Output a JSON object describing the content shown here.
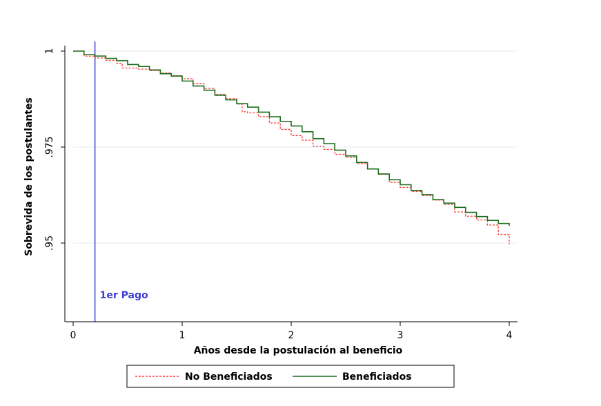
{
  "chart_data": {
    "type": "line",
    "ylabel": "Sobrevida de los postulantes",
    "xlabel": "Años desde la postulación al beneficio",
    "xlim": [
      0,
      4
    ],
    "ylim": [
      0.9295,
      1.0
    ],
    "x_ticks": [
      0,
      1,
      2,
      3,
      4
    ],
    "x_tick_labels": [
      "0",
      "1",
      "2",
      "3",
      "4"
    ],
    "y_ticks": [
      0.95,
      0.975,
      1.0
    ],
    "y_tick_labels": [
      ".95",
      ".975",
      "1"
    ],
    "grid": "horizontal",
    "legend_position": "bottom",
    "vline": {
      "x": 0.2,
      "label": "1er Pago",
      "color": "#3c3cd2"
    },
    "series": [
      {
        "name": "No Beneficiados",
        "color": "#ff3a3a",
        "style": "dashed",
        "x": [
          0,
          0.1,
          0.2,
          0.3,
          0.4,
          0.45,
          0.5,
          0.6,
          0.7,
          0.8,
          0.9,
          1.0,
          1.1,
          1.2,
          1.3,
          1.4,
          1.5,
          1.55,
          1.6,
          1.7,
          1.8,
          1.9,
          2.0,
          2.1,
          2.2,
          2.3,
          2.4,
          2.5,
          2.6,
          2.7,
          2.8,
          2.9,
          3.0,
          3.1,
          3.2,
          3.3,
          3.4,
          3.5,
          3.6,
          3.7,
          3.8,
          3.9,
          4.0
        ],
        "values": [
          1.0,
          0.9987,
          0.9982,
          0.9976,
          0.9968,
          0.9956,
          0.9956,
          0.9953,
          0.9949,
          0.9943,
          0.9936,
          0.9928,
          0.9916,
          0.9903,
          0.9887,
          0.9876,
          0.9862,
          0.9842,
          0.9839,
          0.9829,
          0.9813,
          0.9796,
          0.978,
          0.9768,
          0.9752,
          0.9744,
          0.9731,
          0.9723,
          0.9707,
          0.9693,
          0.9679,
          0.9658,
          0.9645,
          0.9634,
          0.9624,
          0.9612,
          0.96,
          0.9581,
          0.957,
          0.956,
          0.9547,
          0.9522,
          0.9497
        ]
      },
      {
        "name": "Beneficiados",
        "color": "#1e6e1e",
        "style": "solid",
        "x": [
          0,
          0.1,
          0.2,
          0.3,
          0.4,
          0.5,
          0.6,
          0.7,
          0.8,
          0.9,
          1.0,
          1.1,
          1.2,
          1.3,
          1.4,
          1.5,
          1.6,
          1.7,
          1.8,
          1.9,
          2.0,
          2.1,
          2.2,
          2.3,
          2.4,
          2.5,
          2.6,
          2.7,
          2.8,
          2.9,
          3.0,
          3.1,
          3.2,
          3.3,
          3.4,
          3.5,
          3.6,
          3.7,
          3.8,
          3.9,
          4.0
        ],
        "values": [
          1.0,
          0.9991,
          0.9987,
          0.9981,
          0.9975,
          0.9965,
          0.996,
          0.9951,
          0.9941,
          0.9935,
          0.9922,
          0.9909,
          0.9898,
          0.9885,
          0.9873,
          0.9863,
          0.9854,
          0.9841,
          0.9829,
          0.9817,
          0.9805,
          0.979,
          0.9772,
          0.9759,
          0.9742,
          0.9727,
          0.971,
          0.9693,
          0.968,
          0.9665,
          0.9652,
          0.9637,
          0.9626,
          0.9613,
          0.9604,
          0.9593,
          0.958,
          0.9569,
          0.9559,
          0.9551,
          0.9545
        ]
      }
    ]
  }
}
